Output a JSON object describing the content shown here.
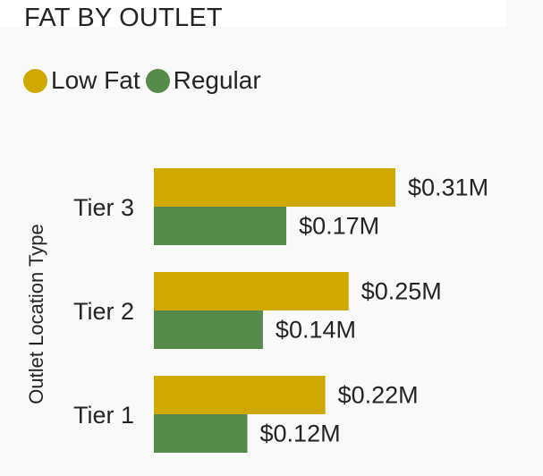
{
  "colors": {
    "low_fat": "#cfa900",
    "regular": "#568a4b"
  },
  "chart_data": {
    "type": "bar",
    "orientation": "horizontal",
    "title": "FAT BY OUTLET",
    "ylabel": "Outlet Location Type",
    "categories": [
      "Tier 3",
      "Tier 2",
      "Tier 1"
    ],
    "series": [
      {
        "name": "Low Fat",
        "values": [
          0.31,
          0.25,
          0.22
        ],
        "labels": [
          "$0.31M",
          "$0.25M",
          "$0.22M"
        ]
      },
      {
        "name": "Regular",
        "values": [
          0.17,
          0.14,
          0.12
        ],
        "labels": [
          "$0.17M",
          "$0.14M",
          "$0.12M"
        ]
      }
    ],
    "xlim": [
      0,
      0.31
    ],
    "legend_position": "top-left",
    "grid": false
  }
}
